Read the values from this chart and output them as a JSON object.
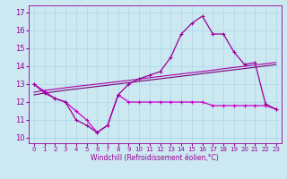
{
  "hours": [
    0,
    1,
    2,
    3,
    4,
    5,
    6,
    7,
    8,
    9,
    10,
    11,
    12,
    13,
    14,
    15,
    16,
    17,
    18,
    19,
    20,
    21,
    22,
    23
  ],
  "temp_line": [
    13.0,
    12.5,
    12.2,
    12.0,
    11.0,
    10.7,
    10.3,
    10.7,
    12.4,
    13.0,
    13.3,
    13.5,
    13.7,
    14.5,
    15.8,
    16.4,
    16.8,
    15.8,
    15.8,
    14.8,
    14.1,
    14.2,
    11.9,
    11.6
  ],
  "wind_line": [
    13.0,
    12.6,
    12.2,
    12.0,
    11.5,
    11.0,
    10.3,
    10.7,
    12.4,
    12.0,
    12.0,
    12.0,
    12.0,
    12.0,
    12.0,
    12.0,
    12.0,
    11.8,
    11.8,
    11.8,
    11.8,
    11.8,
    11.8,
    11.6
  ],
  "linear1": [
    12.55,
    12.65,
    12.72,
    12.8,
    12.87,
    12.94,
    13.0,
    13.07,
    13.14,
    13.21,
    13.28,
    13.36,
    13.43,
    13.5,
    13.57,
    13.64,
    13.71,
    13.78,
    13.86,
    13.93,
    14.0,
    14.07,
    14.14,
    14.21
  ],
  "linear2": [
    12.4,
    12.5,
    12.58,
    12.66,
    12.73,
    12.8,
    12.87,
    12.94,
    13.01,
    13.08,
    13.16,
    13.23,
    13.3,
    13.37,
    13.44,
    13.51,
    13.59,
    13.66,
    13.73,
    13.8,
    13.87,
    13.94,
    14.02,
    14.09
  ],
  "bg_color": "#cce8f0",
  "line_color1": "#990099",
  "line_color2": "#cc00cc",
  "line_color3": "#aa00aa",
  "line_color4": "#770077",
  "grid_color": "#aad8e8",
  "xlabel": "Windchill (Refroidissement éolien,°C)",
  "ylabel_ticks": [
    10,
    11,
    12,
    13,
    14,
    15,
    16,
    17
  ],
  "ylim": [
    9.7,
    17.4
  ],
  "xlim": [
    -0.5,
    23.5
  ]
}
